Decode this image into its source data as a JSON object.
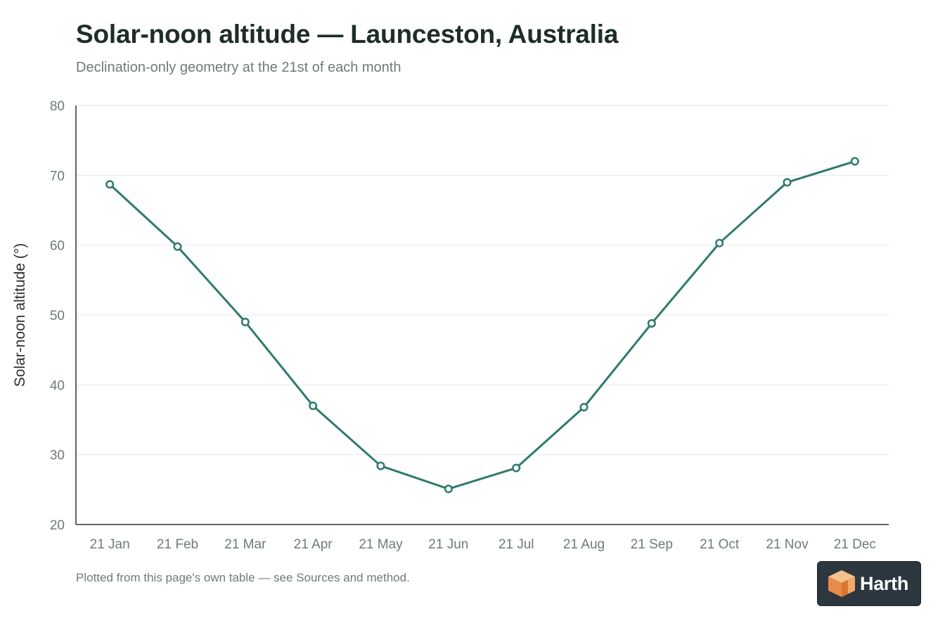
{
  "title": "Solar-noon altitude — Launceston, Australia",
  "subtitle": "Declination-only geometry at the 21st of each month",
  "footnote": "Plotted from this page's own table — see Sources and method.",
  "brand": {
    "name": "Harth",
    "icon": "harth-cube-logo-icon"
  },
  "colors": {
    "line": "#2e7a6d",
    "axis": "#2d3532",
    "grid": "#e6e8e7",
    "tick_text": "#6f7b78",
    "title": "#1f2d2a"
  },
  "chart_data": {
    "type": "line",
    "title": "Solar-noon altitude — Launceston, Australia",
    "subtitle": "Declination-only geometry at the 21st of each month",
    "xlabel": "",
    "ylabel": "Solar-noon altitude (°)",
    "categories": [
      "21 Jan",
      "21 Feb",
      "21 Mar",
      "21 Apr",
      "21 May",
      "21 Jun",
      "21 Jul",
      "21 Aug",
      "21 Sep",
      "21 Oct",
      "21 Nov",
      "21 Dec"
    ],
    "series": [
      {
        "values": [
          68.7,
          59.8,
          49.0,
          37.0,
          28.4,
          25.1,
          28.1,
          36.8,
          48.8,
          60.3,
          69.0,
          72.0
        ]
      }
    ],
    "ylim": [
      20,
      80
    ],
    "yticks": [
      20,
      30,
      40,
      50,
      60,
      70,
      80
    ],
    "grid": "horizontal",
    "legend": "none",
    "markers": "hollow-circle"
  }
}
